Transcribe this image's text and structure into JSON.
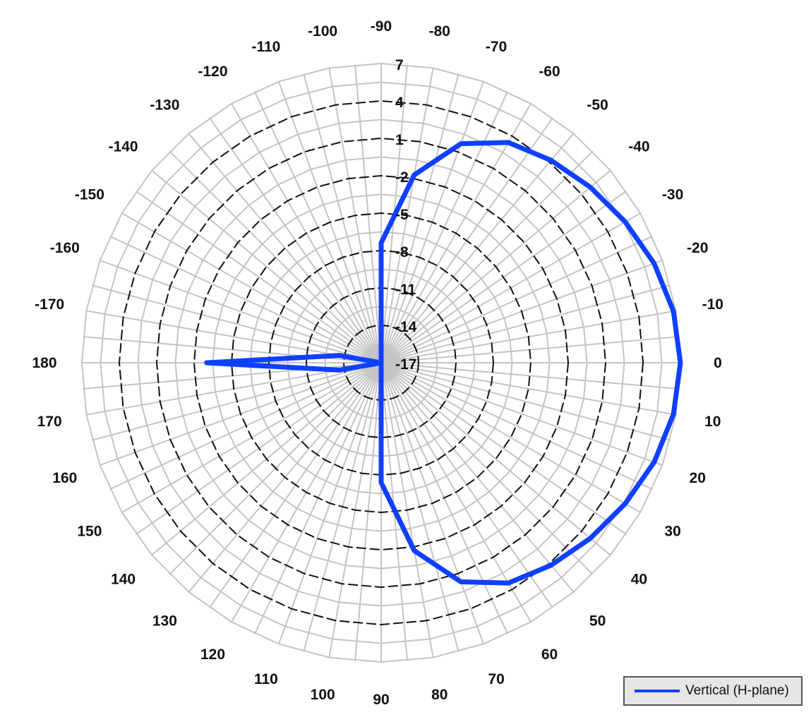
{
  "chart_data": {
    "type": "polar-line",
    "angles": [
      -90,
      -80,
      -70,
      -60,
      -50,
      -40,
      -30,
      -20,
      -10,
      0,
      10,
      20,
      30,
      40,
      50,
      60,
      70,
      80,
      90,
      100,
      110,
      120,
      130,
      140,
      150,
      160,
      170,
      180,
      -170,
      -160,
      -150,
      -140,
      -130,
      -120,
      -110,
      -100
    ],
    "angle_labels": [
      "-90",
      "-80",
      "-70",
      "-60",
      "-50",
      "-40",
      "-30",
      "-20",
      "-10",
      "0",
      "10",
      "20",
      "30",
      "40",
      "50",
      "60",
      "70",
      "80",
      "90",
      "100",
      "110",
      "120",
      "130",
      "140",
      "150",
      "160",
      "170",
      "180",
      "-170",
      "-160",
      "-150",
      "-140",
      "-130",
      "-120",
      "-110",
      "-100"
    ],
    "radial_ticks": [
      7,
      4,
      1,
      -2,
      -5,
      -8,
      -11,
      -14,
      -17
    ],
    "radial_tick_labels": [
      "7",
      "4",
      "1",
      "-2",
      "-5",
      "-8",
      "-11",
      "-14",
      "-17"
    ],
    "rlim": [
      -17,
      7
    ],
    "grid": true,
    "legend_position": "bottom-right",
    "series": [
      {
        "name": "Vertical (H-plane)",
        "color": "#1040ff",
        "angles": [
          0,
          10,
          20,
          30,
          40,
          50,
          60,
          70,
          80,
          90,
          100,
          110,
          120,
          130,
          140,
          150,
          160,
          170,
          180,
          -170,
          -160,
          -150,
          -140,
          -130,
          -120,
          -110,
          -100,
          -90,
          -80,
          -70,
          -60,
          -50,
          -40,
          -30,
          -20,
          -10
        ],
        "values": [
          7,
          6.8,
          6.3,
          5.6,
          4.9,
          4.2,
          3.4,
          1.7,
          -1.7,
          -7.4,
          -17,
          -17,
          -17,
          -17,
          -17,
          -17,
          -17,
          -13.6,
          -3,
          -13.6,
          -17,
          -17,
          -17,
          -17,
          -17,
          -17,
          -17,
          -7.4,
          -1.7,
          1.7,
          3.4,
          4.2,
          4.9,
          5.6,
          6.3,
          6.8
        ]
      }
    ]
  },
  "legend": {
    "label": "Vertical (H-plane)"
  }
}
